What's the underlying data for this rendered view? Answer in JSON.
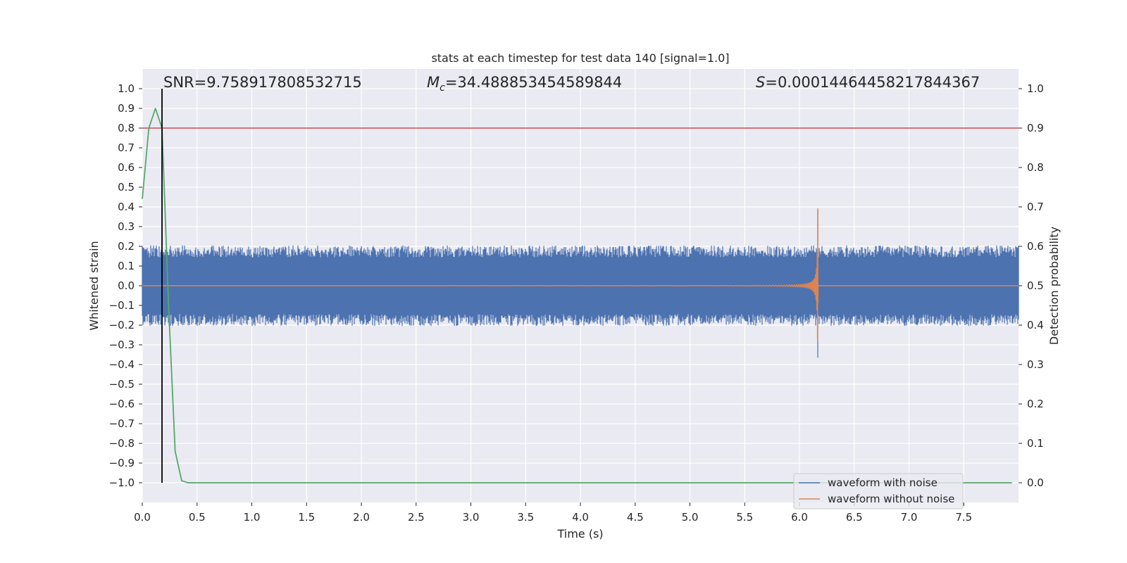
{
  "chart_data": {
    "type": "line",
    "title": "stats at each timestep for test data 140 [signal=1.0]",
    "xlabel": "Time (s)",
    "ylabel": "Whitened strain",
    "ylabel_right": "Detection probability",
    "xlim": [
      0.0,
      8.0
    ],
    "ylim": [
      -1.1,
      1.1
    ],
    "ylim_right": [
      -0.05,
      1.05
    ],
    "x_ticks": [
      "0.0",
      "0.5",
      "1.0",
      "1.5",
      "2.0",
      "2.5",
      "3.0",
      "3.5",
      "4.0",
      "4.5",
      "5.0",
      "5.5",
      "6.0",
      "6.5",
      "7.0",
      "7.5"
    ],
    "y_ticks": [
      "1.0",
      "0.9",
      "0.8",
      "0.7",
      "0.6",
      "0.5",
      "0.4",
      "0.3",
      "0.2",
      "0.1",
      "0.0",
      "−0.1",
      "−0.2",
      "−0.3",
      "−0.4",
      "−0.5",
      "−0.6",
      "−0.7",
      "−0.8",
      "−0.9",
      "−1.0"
    ],
    "y_ticks_right": [
      "1.0",
      "0.9",
      "0.8",
      "0.7",
      "0.6",
      "0.5",
      "0.4",
      "0.3",
      "0.2",
      "0.1",
      "0.0"
    ],
    "grid": true,
    "annotations": {
      "snr": "SNR=9.758917808532715",
      "mc_symbol": "M",
      "mc_sub": "c",
      "mc_value": "=34.488853454589844",
      "s_symbol": "S",
      "s_value": "=0.00014464458217844367"
    },
    "threshold_right": 0.9,
    "detection_time": 0.18,
    "merger_time": 6.17,
    "noise_envelope": 0.2,
    "series": [
      {
        "name": "waveform with noise",
        "color": "#4c72b0"
      },
      {
        "name": "waveform without noise",
        "color": "#dd8452"
      },
      {
        "color": "#55a868",
        "x": [
          0.0,
          0.06,
          0.12,
          0.18,
          0.24,
          0.3,
          0.36,
          0.42,
          1.0,
          2.0,
          3.0,
          4.0,
          5.0,
          6.0,
          7.0,
          7.94
        ],
        "values_right": [
          0.72,
          0.9,
          0.95,
          0.9,
          0.45,
          0.08,
          0.005,
          0.0,
          0.0,
          0.0,
          0.0,
          0.0,
          0.0,
          0.0,
          0.0,
          0.0
        ]
      },
      {
        "color": "#c44e52"
      }
    ],
    "legend_position": "bottom-right"
  }
}
